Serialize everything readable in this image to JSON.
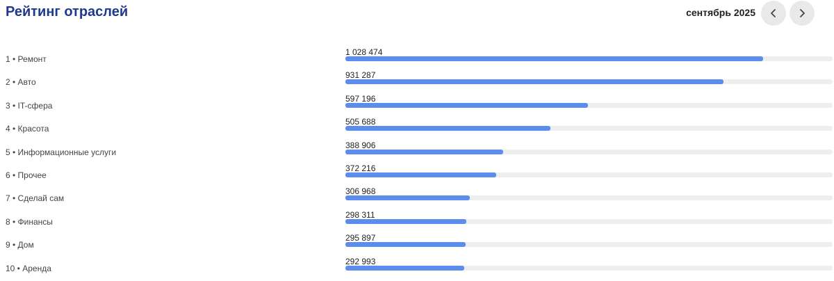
{
  "header": {
    "title": "Рейтинг отраслей",
    "period": "сентябрь 2025",
    "prev_icon": "chevron-left-icon",
    "next_icon": "chevron-right-icon"
  },
  "colors": {
    "title": "#1d3a8f",
    "bar_fill": "#5b8def",
    "bar_track": "#eeeeee"
  },
  "bar_scale_max": 1200000,
  "items": [
    {
      "rank": "1",
      "name": "Ремонт",
      "label": "1 • Ремонт",
      "value": 1028474,
      "value_text": "1 028 474"
    },
    {
      "rank": "2",
      "name": "Авто",
      "label": "2 • Авто",
      "value": 931287,
      "value_text": "931 287"
    },
    {
      "rank": "3",
      "name": "IT-сфера",
      "label": "3 • IT-сфера",
      "value": 597196,
      "value_text": "597 196"
    },
    {
      "rank": "4",
      "name": "Красота",
      "label": "4 • Красота",
      "value": 505688,
      "value_text": "505 688"
    },
    {
      "rank": "5",
      "name": "Информационные услуги",
      "label": "5 • Информационные услуги",
      "value": 388906,
      "value_text": "388 906"
    },
    {
      "rank": "6",
      "name": "Прочее",
      "label": "6 • Прочее",
      "value": 372216,
      "value_text": "372 216"
    },
    {
      "rank": "7",
      "name": "Сделай сам",
      "label": "7 • Сделай сам",
      "value": 306968,
      "value_text": "306 968"
    },
    {
      "rank": "8",
      "name": "Финансы",
      "label": "8 • Финансы",
      "value": 298311,
      "value_text": "298 311"
    },
    {
      "rank": "9",
      "name": "Дом",
      "label": "9 • Дом",
      "value": 295897,
      "value_text": "295 897"
    },
    {
      "rank": "10",
      "name": "Аренда",
      "label": "10 • Аренда",
      "value": 292993,
      "value_text": "292 993"
    }
  ]
}
